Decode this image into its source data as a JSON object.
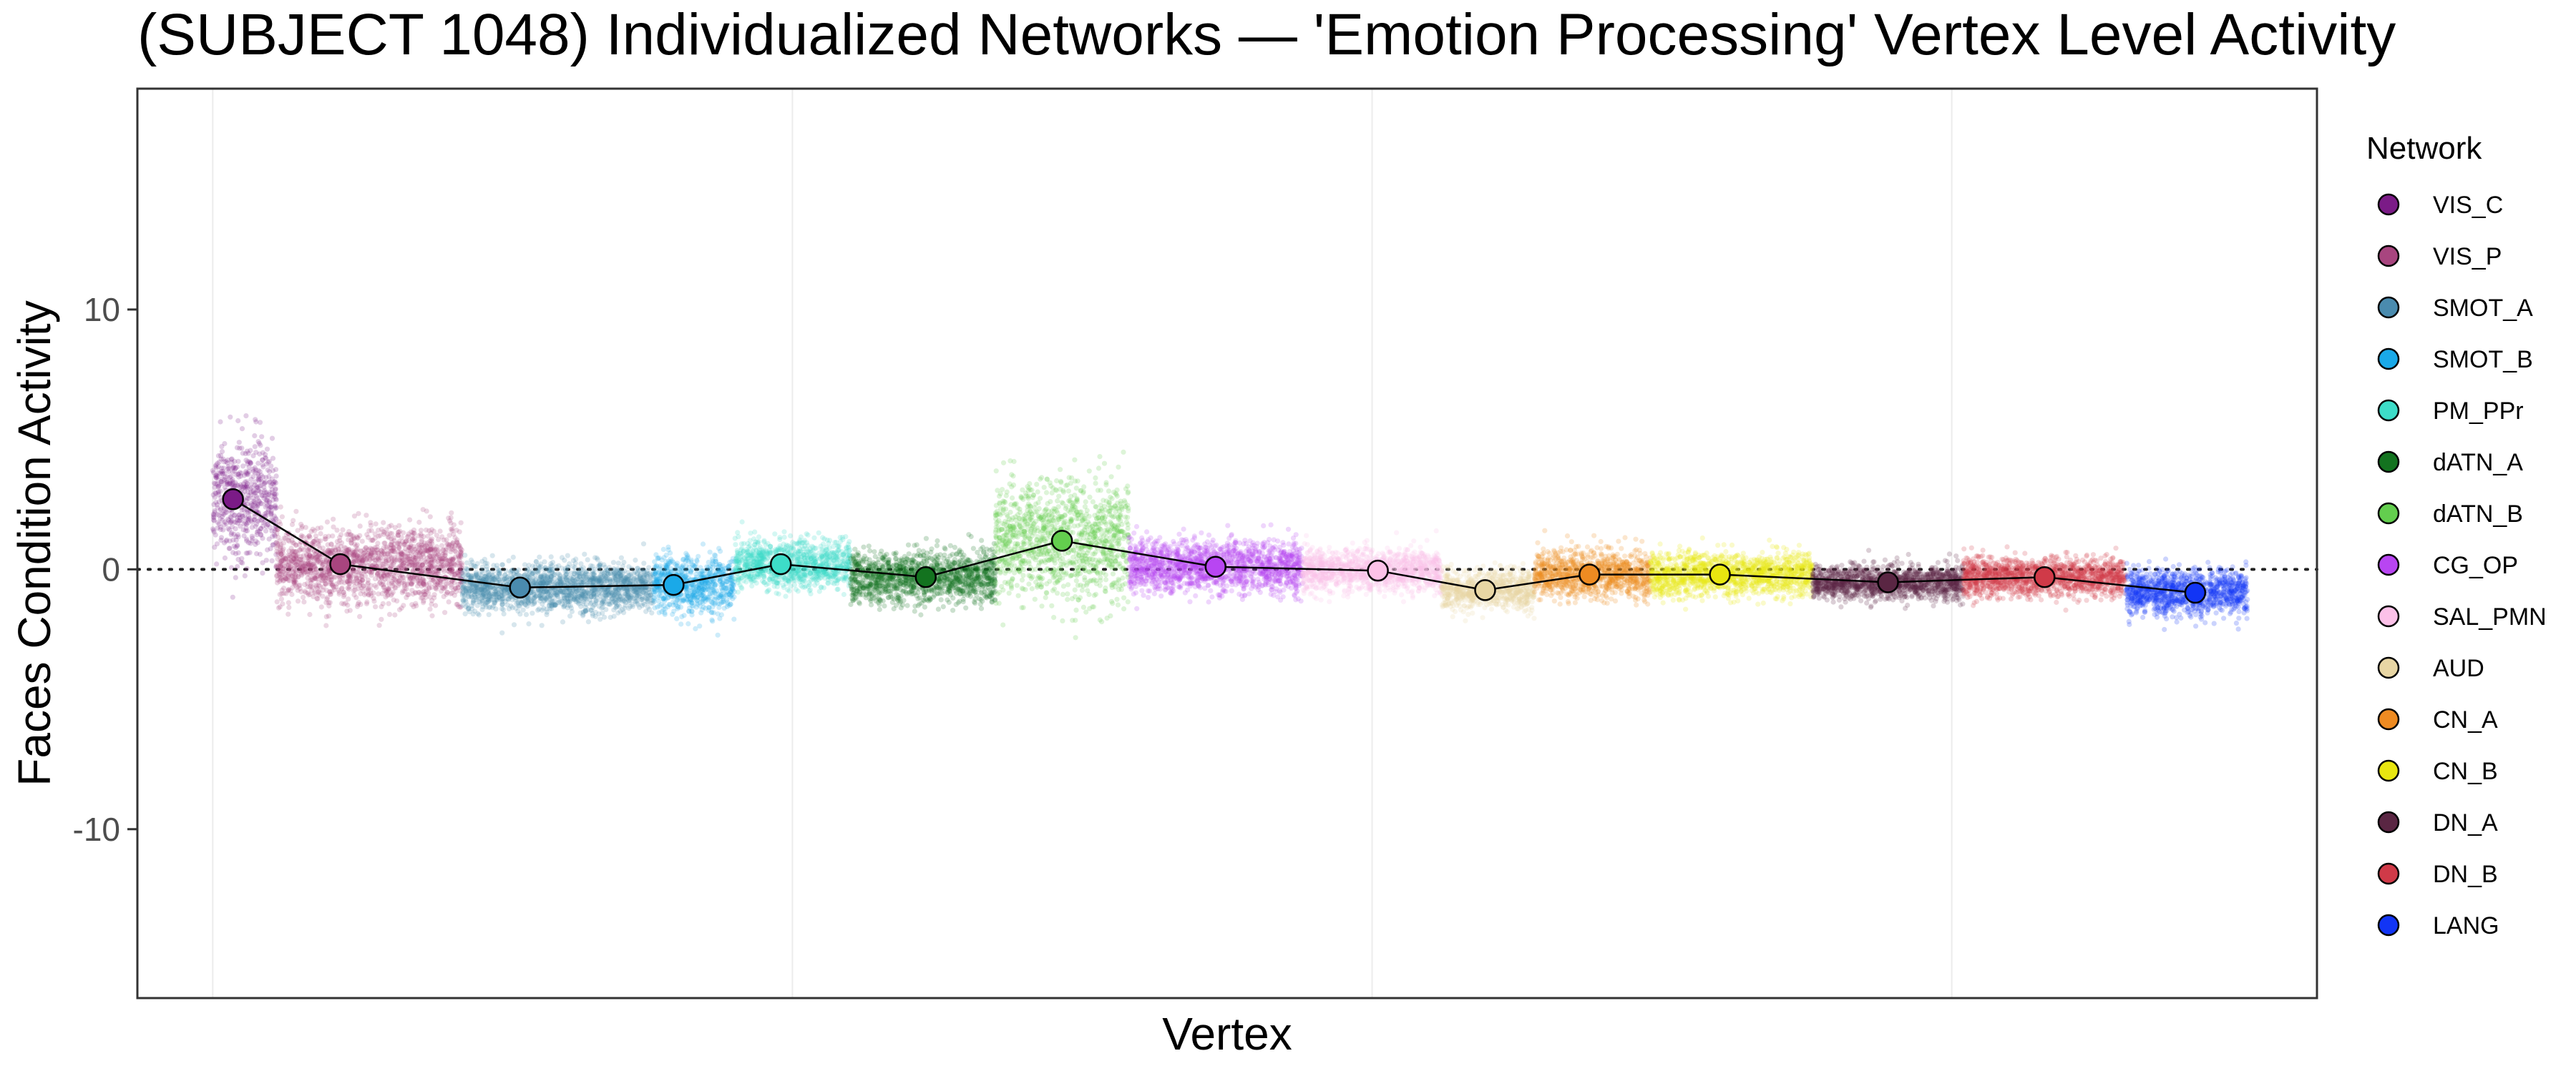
{
  "chart_data": {
    "type": "scatter",
    "title": "(SUBJECT 1048) Individualized Networks — 'Emotion Processing' Vertex Level Activity",
    "xlabel": "Vertex",
    "ylabel": "Faces Condition Activity",
    "ylim": [
      -16.5,
      18.5
    ],
    "yticks": [
      -10,
      0,
      10
    ],
    "reference_line_y": 0,
    "grid": "vertical-minor",
    "legend": {
      "title": "Network",
      "placement": "right"
    },
    "networks": [
      {
        "name": "VIS_C",
        "color": "#7B1B87",
        "vertex_range": [
          0,
          110
        ],
        "mean": 2.7,
        "spread": 2.6
      },
      {
        "name": "VIS_P",
        "color": "#A8457F",
        "vertex_range": [
          110,
          430
        ],
        "mean": 0.2,
        "spread": 1.6
      },
      {
        "name": "SMOT_A",
        "color": "#4A8BAE",
        "vertex_range": [
          430,
          760
        ],
        "mean": -0.7,
        "spread": 1.0
      },
      {
        "name": "SMOT_B",
        "color": "#1AA9E8",
        "vertex_range": [
          760,
          900
        ],
        "mean": -0.6,
        "spread": 1.2
      },
      {
        "name": "PM_PPr",
        "color": "#3DDCC8",
        "vertex_range": [
          900,
          1100
        ],
        "mean": 0.2,
        "spread": 1.0
      },
      {
        "name": "dATN_A",
        "color": "#13731F",
        "vertex_range": [
          1100,
          1350
        ],
        "mean": -0.3,
        "spread": 1.1
      },
      {
        "name": "dATN_B",
        "color": "#63CE4E",
        "vertex_range": [
          1350,
          1580
        ],
        "mean": 1.1,
        "spread": 2.6
      },
      {
        "name": "CG_OP",
        "color": "#B845F2",
        "vertex_range": [
          1580,
          1880
        ],
        "mean": 0.1,
        "spread": 1.1
      },
      {
        "name": "SAL_PMN",
        "color": "#FCC1E8",
        "vertex_range": [
          1880,
          2120
        ],
        "mean": -0.05,
        "spread": 0.9
      },
      {
        "name": "AUD",
        "color": "#E8D6A4",
        "vertex_range": [
          2120,
          2280
        ],
        "mean": -0.8,
        "spread": 0.8
      },
      {
        "name": "CN_A",
        "color": "#EE8B22",
        "vertex_range": [
          2280,
          2480
        ],
        "mean": -0.2,
        "spread": 1.0
      },
      {
        "name": "CN_B",
        "color": "#E8E610",
        "vertex_range": [
          2480,
          2760
        ],
        "mean": -0.2,
        "spread": 0.9
      },
      {
        "name": "DN_A",
        "color": "#5A2643",
        "vertex_range": [
          2760,
          3020
        ],
        "mean": -0.5,
        "spread": 0.7
      },
      {
        "name": "DN_B",
        "color": "#D03A48",
        "vertex_range": [
          3020,
          3300
        ],
        "mean": -0.3,
        "spread": 0.8
      },
      {
        "name": "LANG",
        "color": "#1235F5",
        "vertex_range": [
          3300,
          3510
        ],
        "mean": -0.9,
        "spread": 1.0
      }
    ],
    "mean_points": [
      {
        "network": "VIS_C",
        "x": 35,
        "y": 2.7
      },
      {
        "network": "VIS_P",
        "x": 220,
        "y": 0.2
      },
      {
        "network": "SMOT_A",
        "x": 530,
        "y": -0.7
      },
      {
        "network": "SMOT_B",
        "x": 795,
        "y": -0.6
      },
      {
        "network": "PM_PPr",
        "x": 980,
        "y": 0.2
      },
      {
        "network": "dATN_A",
        "x": 1230,
        "y": -0.3
      },
      {
        "network": "dATN_B",
        "x": 1465,
        "y": 1.1
      },
      {
        "network": "CG_OP",
        "x": 1730,
        "y": 0.1
      },
      {
        "network": "SAL_PMN",
        "x": 2010,
        "y": -0.05
      },
      {
        "network": "AUD",
        "x": 2195,
        "y": -0.8
      },
      {
        "network": "CN_A",
        "x": 2375,
        "y": -0.2
      },
      {
        "network": "CN_B",
        "x": 2600,
        "y": -0.2
      },
      {
        "network": "DN_A",
        "x": 2890,
        "y": -0.5
      },
      {
        "network": "DN_B",
        "x": 3160,
        "y": -0.3
      },
      {
        "network": "LANG",
        "x": 3420,
        "y": -0.9
      }
    ]
  }
}
